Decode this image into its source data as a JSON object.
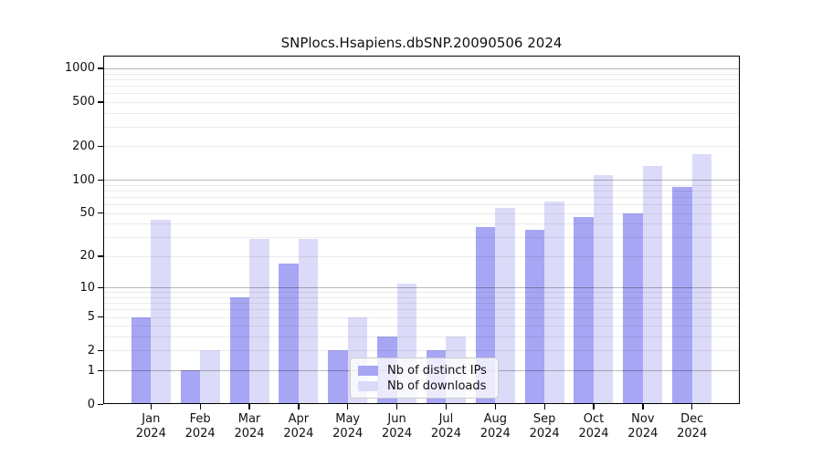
{
  "title": "SNPlocs.Hsapiens.dbSNP.20090506 2024",
  "legend": {
    "items": [
      {
        "label": "Nb of distinct IPs",
        "color": "#a6a6f4"
      },
      {
        "label": "Nb of downloads",
        "color": "#dbdbf9"
      }
    ]
  },
  "chart_data": {
    "type": "bar",
    "title": "SNPlocs.Hsapiens.dbSNP.20090506 2024",
    "months": [
      "Jan",
      "Feb",
      "Mar",
      "Apr",
      "May",
      "Jun",
      "Jul",
      "Aug",
      "Sep",
      "Oct",
      "Nov",
      "Dec"
    ],
    "year": "2024",
    "series": [
      {
        "name": "Nb of distinct IPs",
        "color": "#a6a6f4",
        "values": [
          5,
          1,
          8,
          17,
          2,
          3,
          2,
          37,
          35,
          46,
          50,
          86
        ]
      },
      {
        "name": "Nb of downloads",
        "color": "#dbdbf9",
        "values": [
          43,
          2,
          29,
          29,
          5,
          11,
          3,
          56,
          64,
          110,
          132,
          170
        ]
      }
    ],
    "y_axis": {
      "scale": "log10(1+x)",
      "ticks": [
        0,
        1,
        2,
        5,
        10,
        20,
        50,
        100,
        200,
        500,
        1000
      ],
      "major_gridlines": [
        1,
        10,
        100,
        1000
      ],
      "minor_gridlines_rule": "2-9 per decade",
      "range_top_value": 1300
    },
    "legend_position": "inside-bottom-center",
    "grid": "on"
  }
}
